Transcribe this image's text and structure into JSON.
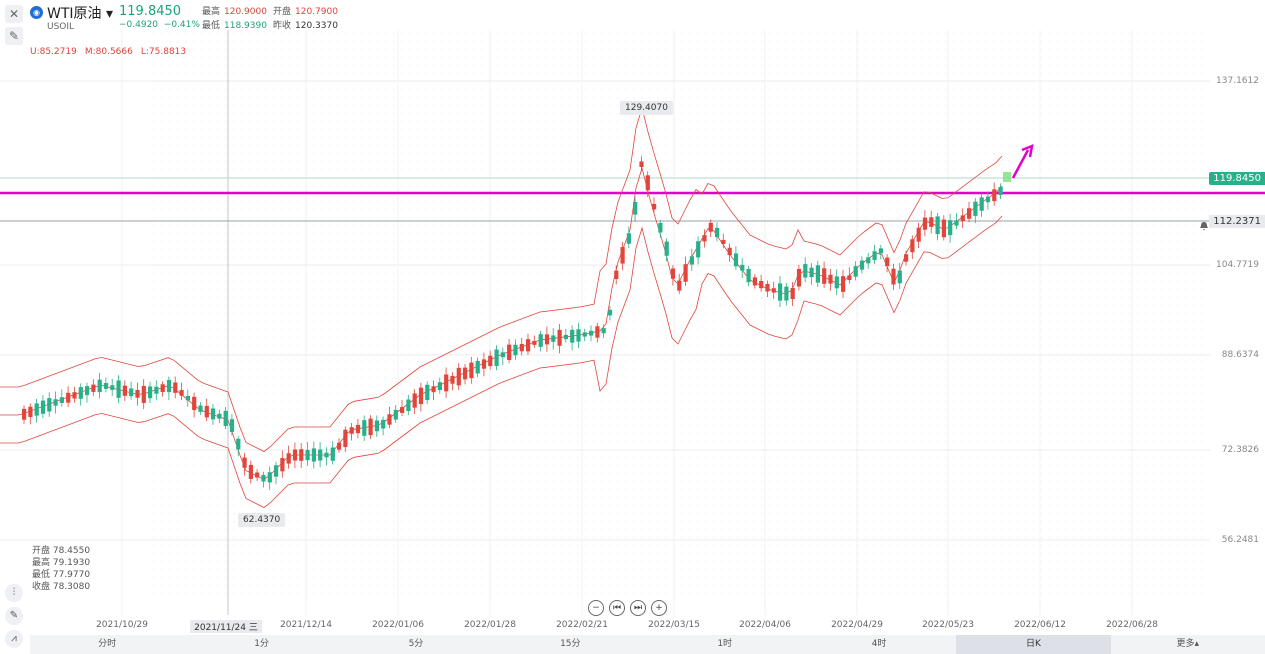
{
  "toolbar": {
    "close_icon": "close-icon",
    "draw_icon": "draw-icon"
  },
  "symbol": {
    "name": "WTI原油 ▾",
    "code": "USOIL",
    "price": "119.8450",
    "change": "−0.4920",
    "change_pct": "−0.41%",
    "high_label": "最高",
    "high": "120.9000",
    "open_label": "开盘",
    "open": "120.7900",
    "low_label": "最低",
    "low": "118.9390",
    "prev_label": "昨收",
    "prev": "120.3370"
  },
  "boll": {
    "u": "U:85.2719",
    "m": "M:80.5666",
    "l": "L:75.8813"
  },
  "ohlc_panel": {
    "open": "开盘 78.4550",
    "high": "最高 79.1930",
    "low": "最低 77.9770",
    "close": "收盘 78.3080"
  },
  "y_axis": [
    "137.1612",
    "119.8450",
    "112.2371",
    "104.7719",
    "88.6374",
    "72.3826",
    "56.2481"
  ],
  "x_axis": [
    "2021/10/29",
    "2021/11/24 三",
    "2021/12/14",
    "2022/01/06",
    "2022/01/28",
    "2022/02/21",
    "2022/03/15",
    "2022/04/06",
    "2022/04/29",
    "2022/05/23",
    "2022/06/12",
    "2022/06/28"
  ],
  "peak_labels": {
    "high": "129.4070",
    "low": "62.4370"
  },
  "current_price_tag": "119.8450",
  "alert_price_tag": "112.2371",
  "periods": [
    "分时",
    "1分",
    "5分",
    "15分",
    "1时",
    "4时",
    "日K",
    "更多▴"
  ],
  "active_period": "日K",
  "colors": {
    "up": "#e0463c",
    "down": "#27b089",
    "boll": "#e0463c",
    "hline": "#e000d0"
  }
}
